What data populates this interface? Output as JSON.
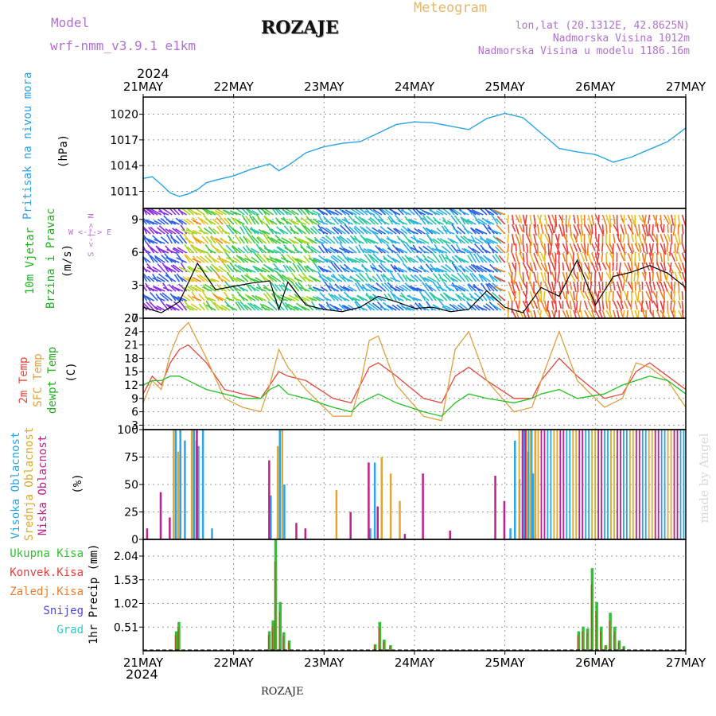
{
  "header": {
    "model_label": "Model",
    "model_name": "wrf-nmm_v3.9.1 e1km",
    "station": "ROZAJE",
    "meteogram_label": "Meteogram",
    "coords": "lon,lat (20.1312E, 42.8625N)",
    "altitude": "Nadmorska Visina 1012m",
    "model_altitude": "Nadmorska Visina u modelu 1186.16m",
    "year_top": "2024",
    "year_bottom": "2024",
    "footer_station": "ROZAJE",
    "watermark": "made by Angel"
  },
  "colors": {
    "pressure": "#29a3e6",
    "temp2m": "#e6463c",
    "sfc": "#e0a040",
    "dewpt": "#22c022",
    "high_cloud": "#2aa6e8",
    "mid_cloud": "#e0a830",
    "low_cloud": "#c0208c",
    "total_precip": "#30c030",
    "conv_precip": "#e63c3c",
    "frz_precip": "#f07c2c",
    "snow": "#4848e0",
    "hail": "#30c8c8",
    "wind_speed": "#000000",
    "gust": "#e64040",
    "compass": "#c070d0",
    "model": "#b070d0"
  },
  "y_titles": {
    "pressure": "Pritisak na nivou mora",
    "pressure_unit": "(hPa)",
    "wind1": "10m Vjetar",
    "wind2": "Brzina i Pravac",
    "wind_unit": "(m/s)",
    "compass": "W <-|-> E",
    "compass2": "S <-|-> N",
    "t1": "2m Temp",
    "t2": "SFC Temp",
    "t3": "dewpt Temp",
    "temp_unit": "(C)",
    "c1": "Visoka Oblacnost",
    "c2": "Srednja Oblacnost",
    "c3": "Niska Oblacnost",
    "cloud_unit": "(%)",
    "precip_title": "1hr Precip (mm)"
  },
  "legend_precip": [
    "Ukupna Kisa",
    "Konvek.Kisa",
    "Zaledj.Kisa",
    "Snijeg",
    "Grad"
  ],
  "chart_data": {
    "type": "line",
    "x_days": [
      "21MAY",
      "22MAY",
      "23MAY",
      "24MAY",
      "25MAY",
      "26MAY",
      "27MAY"
    ],
    "panels": [
      {
        "name": "pressure",
        "ylim": [
          1009,
          1022
        ],
        "yticks": [
          "1011",
          "1014",
          "1017",
          "1020"
        ],
        "series": [
          {
            "x": [
              0,
              0.1,
              0.2,
              0.3,
              0.4,
              0.5,
              0.6,
              0.7,
              0.8,
              1.0,
              1.2,
              1.4,
              1.5,
              1.6,
              1.8,
              2.0,
              2.2,
              2.4,
              2.6,
              2.8,
              3.0,
              3.2,
              3.4,
              3.6,
              3.8,
              4.0,
              4.2,
              4.4,
              4.6,
              4.8,
              5.0,
              5.2,
              5.4,
              5.6,
              5.8,
              6.0
            ],
            "y": [
              1012.5,
              1012.7,
              1011.8,
              1010.8,
              1010.4,
              1010.7,
              1011.2,
              1012.0,
              1012.3,
              1012.8,
              1013.6,
              1014.2,
              1013.4,
              1014.0,
              1015.5,
              1016.2,
              1016.6,
              1016.8,
              1017.8,
              1018.8,
              1019.1,
              1019.0,
              1018.6,
              1018.2,
              1019.5,
              1020.1,
              1019.6,
              1017.8,
              1016.0,
              1015.6,
              1015.3,
              1014.4,
              1015.0,
              1015.9,
              1016.8,
              1018.4
            ]
          }
        ]
      },
      {
        "name": "wind",
        "ylim": [
          0,
          10
        ],
        "yticks": [
          "0",
          "3",
          "6",
          "9"
        ],
        "series": [
          {
            "name": "speed",
            "x": [
              0,
              0.2,
              0.4,
              0.6,
              0.8,
              1.0,
              1.2,
              1.4,
              1.5,
              1.6,
              1.8,
              2.0,
              2.2,
              2.4,
              2.6,
              2.8,
              3.0,
              3.2,
              3.4,
              3.6,
              3.8,
              4.0,
              4.2,
              4.4,
              4.6,
              4.8,
              5.0,
              5.2,
              5.4,
              5.6,
              5.8,
              6.0
            ],
            "y": [
              1.0,
              0.5,
              1.5,
              5.0,
              2.6,
              2.9,
              3.2,
              3.4,
              0.8,
              3.3,
              1.2,
              0.8,
              0.6,
              1.0,
              2.0,
              1.5,
              0.9,
              1.0,
              0.6,
              0.8,
              2.5,
              1.0,
              0.5,
              2.8,
              2.0,
              5.3,
              1.2,
              3.8,
              4.2,
              4.8,
              4.1,
              2.8
            ]
          }
        ]
      },
      {
        "name": "temperature",
        "ylim": [
          2,
          27
        ],
        "yticks": [
          "3",
          "6",
          "9",
          "12",
          "15",
          "18",
          "21",
          "24",
          "27"
        ],
        "series": [
          {
            "name": "2m",
            "x": [
              0,
              0.1,
              0.2,
              0.3,
              0.4,
              0.5,
              0.7,
              0.9,
              1.1,
              1.3,
              1.4,
              1.5,
              1.6,
              1.8,
              2.1,
              2.3,
              2.4,
              2.5,
              2.6,
              2.8,
              3.1,
              3.3,
              3.45,
              3.6,
              3.8,
              4.1,
              4.3,
              4.4,
              4.6,
              4.8,
              5.1,
              5.3,
              5.45,
              5.6,
              5.8,
              6.0
            ],
            "y": [
              10,
              14,
              12,
              17,
              20,
              21,
              17,
              11,
              10,
              9,
              12,
              15,
              14,
              13,
              9,
              8,
              12,
              16,
              17,
              14,
              9,
              8,
              14,
              16,
              13,
              9,
              9,
              13,
              18,
              14,
              9,
              10,
              15,
              17,
              14,
              11
            ]
          },
          {
            "name": "sfc",
            "x": [
              0,
              0.1,
              0.2,
              0.3,
              0.4,
              0.5,
              0.7,
              0.9,
              1.1,
              1.3,
              1.4,
              1.5,
              1.6,
              1.8,
              2.1,
              2.3,
              2.4,
              2.5,
              2.6,
              2.8,
              3.1,
              3.3,
              3.45,
              3.6,
              3.8,
              4.1,
              4.3,
              4.4,
              4.6,
              4.8,
              5.1,
              5.3,
              5.45,
              5.6,
              5.8,
              6.0
            ],
            "y": [
              8,
              13,
              11,
              19,
              24,
              26,
              18,
              9,
              7,
              6,
              12,
              20,
              16,
              11,
              5,
              5,
              12,
              22,
              23,
              12,
              5,
              4,
              20,
              24,
              13,
              6,
              7,
              13,
              24,
              13,
              7,
              9,
              17,
              16,
              13,
              7
            ]
          },
          {
            "name": "dewpt",
            "x": [
              0,
              0.1,
              0.2,
              0.3,
              0.4,
              0.5,
              0.7,
              0.9,
              1.1,
              1.3,
              1.4,
              1.5,
              1.6,
              1.8,
              2.1,
              2.3,
              2.4,
              2.5,
              2.6,
              2.8,
              3.1,
              3.3,
              3.45,
              3.6,
              3.8,
              4.1,
              4.3,
              4.4,
              4.6,
              4.8,
              5.1,
              5.3,
              5.45,
              5.6,
              5.8,
              6.0
            ],
            "y": [
              12,
              13,
              13,
              14,
              14,
              13,
              11,
              10,
              9,
              9,
              11,
              12,
              10,
              9,
              7,
              6,
              8,
              9,
              10,
              8,
              6,
              5,
              8,
              10,
              9,
              8,
              9,
              10,
              11,
              9,
              10,
              12,
              13,
              14,
              13,
              10
            ]
          }
        ]
      },
      {
        "name": "cloud",
        "ylim": [
          0,
          100
        ],
        "yticks": [
          "0",
          "25",
          "50",
          "75",
          "100"
        ],
        "series": [
          {
            "name": "high",
            "x": [
              0.35,
              0.4,
              0.45,
              0.55,
              0.6,
              0.65,
              0.75,
              1.4,
              1.5,
              1.55,
              2.5,
              2.55,
              4.05,
              4.1,
              4.15,
              4.2,
              4.25,
              4.3
            ],
            "y": [
              100,
              100,
              90,
              100,
              85,
              100,
              10,
              40,
              100,
              50,
              10,
              70,
              10,
              90,
              55,
              100,
              80,
              60
            ]
          },
          {
            "name": "mid",
            "x": [
              0.3,
              0.35,
              0.5,
              0.55,
              1.45,
              1.5,
              2.1,
              2.6,
              2.7,
              2.8,
              4.2,
              4.25,
              4.3
            ],
            "y": [
              100,
              80,
              100,
              90,
              85,
              100,
              45,
              75,
              60,
              35,
              100,
              100,
              100
            ]
          },
          {
            "name": "low",
            "x": [
              0.05,
              0.2,
              0.3,
              0.6,
              1.4,
              1.7,
              1.8,
              2.3,
              2.5,
              2.6,
              2.9,
              3.1,
              3.4,
              3.9,
              4.0
            ],
            "y": [
              10,
              43,
              20,
              100,
              72,
              15,
              10,
              25,
              70,
              30,
              5,
              60,
              8,
              58,
              35
            ]
          }
        ]
      },
      {
        "name": "precip",
        "ylim": [
          0,
          2.4
        ],
        "yticks": [
          "0.51",
          "1.02",
          "1.53",
          "2.04"
        ],
        "series": [
          {
            "name": "total",
            "x": [
              0.35,
              0.38,
              1.38,
              1.42,
              1.45,
              1.5,
              1.54,
              1.6,
              2.55,
              2.6,
              2.65,
              2.72,
              4.8,
              4.85,
              4.9,
              4.95,
              5.0,
              5.05,
              5.1,
              5.15,
              5.2,
              5.25,
              5.3
            ],
            "y": [
              0.42,
              0.62,
              0.42,
              0.65,
              2.4,
              1.05,
              0.4,
              0.22,
              0.14,
              0.62,
              0.24,
              0.12,
              0.42,
              0.52,
              0.48,
              1.78,
              1.05,
              0.52,
              0.12,
              0.82,
              0.52,
              0.22,
              0.1
            ]
          }
        ]
      }
    ]
  }
}
